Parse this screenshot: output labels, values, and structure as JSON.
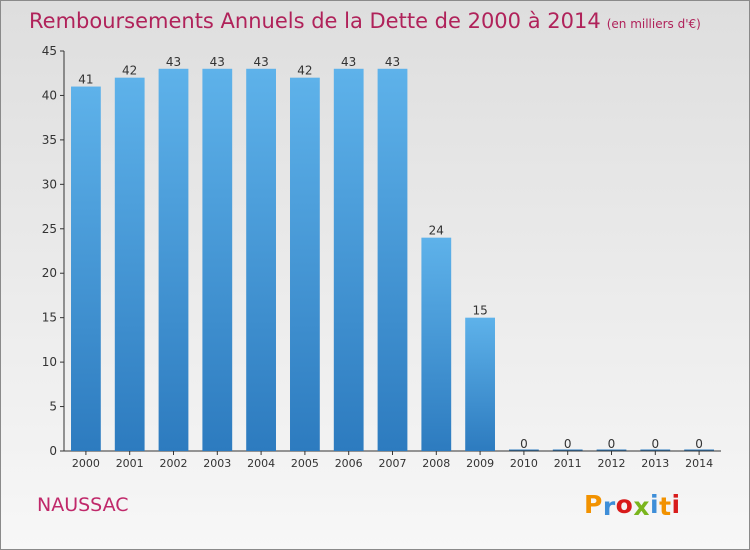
{
  "chart_data": {
    "type": "bar",
    "title": "Remboursements Annuels de la Dette de 2000 à 2014",
    "subtitle": "(en milliers d'€)",
    "categories": [
      "2000",
      "2001",
      "2002",
      "2003",
      "2004",
      "2005",
      "2006",
      "2007",
      "2008",
      "2009",
      "2010",
      "2011",
      "2012",
      "2013",
      "2014"
    ],
    "values": [
      41,
      42,
      43,
      43,
      43,
      42,
      43,
      43,
      24,
      15,
      0,
      0,
      0,
      0,
      0
    ],
    "data_labels": [
      "41",
      "42",
      "43",
      "43",
      "43",
      "42",
      "43",
      "43",
      "24",
      "15",
      "0",
      "0",
      "0",
      "0",
      "0"
    ],
    "ylim": [
      0,
      45
    ],
    "yticks": [
      0,
      5,
      10,
      15,
      20,
      25,
      30,
      35,
      40,
      45
    ],
    "xlabel": "",
    "ylabel": "",
    "grid": false,
    "bar_color": "#5aaee8"
  },
  "footer": {
    "place_name": "NAUSSAC",
    "logo_text": "Proxiti"
  },
  "colors": {
    "title": "#b0225a",
    "logo_letters": [
      "#f29200",
      "#3e8ed8",
      "#d81b1b",
      "#7ab51d",
      "#3e8ed8",
      "#f29200",
      "#d81b1b"
    ]
  }
}
